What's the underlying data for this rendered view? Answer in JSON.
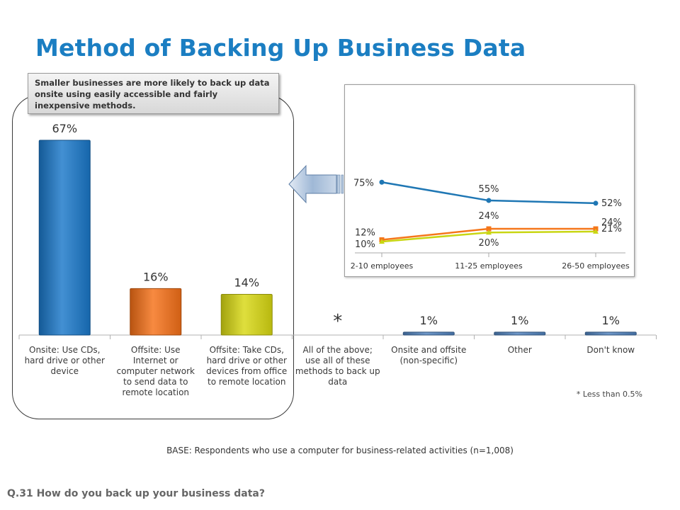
{
  "page": {
    "title": "Method of Backing Up Business Data",
    "callout": "Smaller businesses are more likely to back up data onsite using easily accessible and fairly inexpensive methods.",
    "footnote": "* Less than 0.5%",
    "base": "BASE: Respondents who use a computer for business-related activities (n=1,008)",
    "question": "Q.31 How do you back up your business data?"
  },
  "chart_data": [
    {
      "type": "bar",
      "categories": [
        [
          "Onsite: Use CDs,",
          "hard drive or other",
          "device"
        ],
        [
          "Offsite: Use",
          "Internet or",
          "computer network",
          "to send data to",
          "remote location"
        ],
        [
          "Offsite: Take CDs,",
          "hard drive or other",
          "devices from office",
          "to remote location"
        ],
        [
          "All of the above;",
          "use all of these",
          "methods to back up",
          "data"
        ],
        [
          "Onsite and offsite",
          "(non-specific)"
        ],
        [
          "Other"
        ],
        [
          "Don't know"
        ]
      ],
      "values": [
        67,
        16,
        14,
        0.3,
        1,
        1,
        1
      ],
      "labels": [
        "67%",
        "16%",
        "14%",
        "*",
        "1%",
        "1%",
        "1%"
      ],
      "colors": [
        "#1a78c9",
        "#f57017",
        "#d8d812",
        "#4f81bd",
        "#4f81bd",
        "#4f81bd",
        "#4f81bd"
      ],
      "ylim": [
        0,
        70
      ]
    },
    {
      "type": "line",
      "categories": [
        "2-10 employees",
        "11-25 employees",
        "26-50 employees"
      ],
      "series": [
        {
          "values": [
            75,
            55,
            52
          ],
          "labels": [
            "75%",
            "55%",
            "52%"
          ],
          "color": "#1f77b4",
          "marker": "circle"
        },
        {
          "values": [
            12,
            24,
            24
          ],
          "labels": [
            "12%",
            "24%",
            "24%"
          ],
          "color": "#f5761a",
          "marker": "square"
        },
        {
          "values": [
            10,
            20,
            21
          ],
          "labels": [
            "10%",
            "20%",
            "21%"
          ],
          "color": "#c9d613",
          "marker": "triangle"
        }
      ],
      "ylim": [
        0,
        80
      ]
    }
  ]
}
